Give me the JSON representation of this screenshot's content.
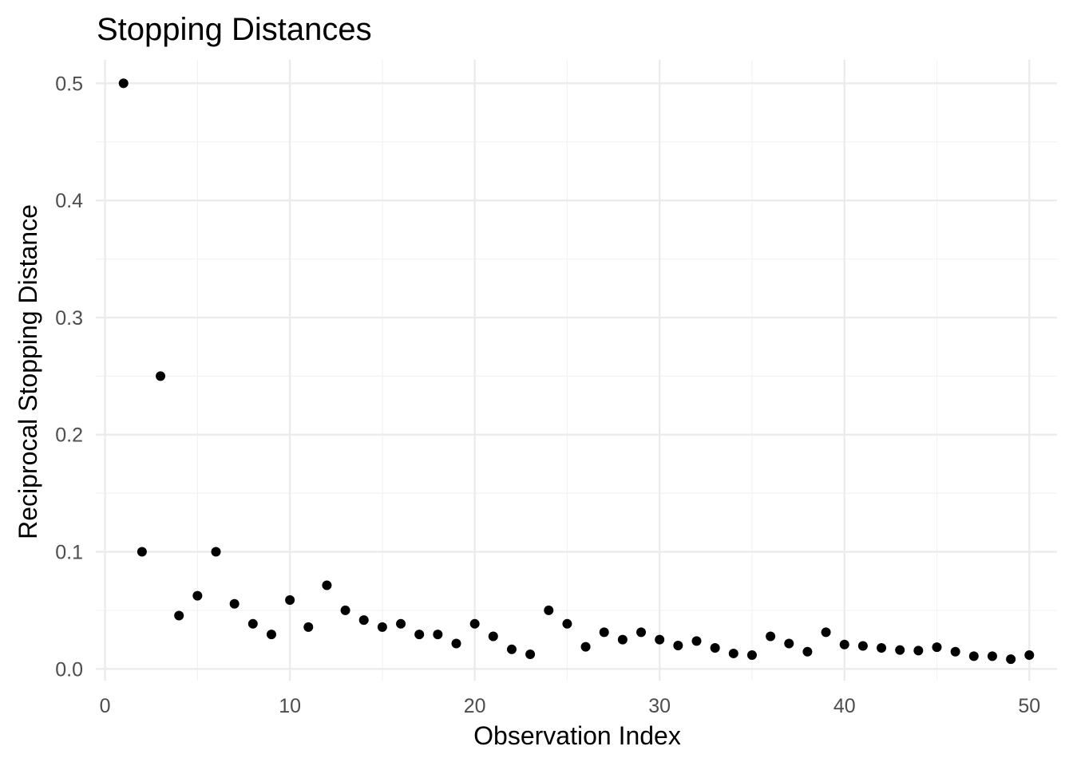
{
  "chart_data": {
    "type": "scatter",
    "title": "Stopping Distances",
    "xlabel": "Observation Index",
    "ylabel": "Reciprocal Stopping Distance",
    "xlim": [
      -0.5,
      51.5
    ],
    "ylim": [
      -0.01,
      0.52
    ],
    "x_ticks": [
      0,
      10,
      20,
      30,
      40,
      50
    ],
    "x_tick_labels": [
      "0",
      "10",
      "20",
      "30",
      "40",
      "50"
    ],
    "x_minor_ticks": [
      5,
      15,
      25,
      35,
      45
    ],
    "y_ticks": [
      0.0,
      0.1,
      0.2,
      0.3,
      0.4,
      0.5
    ],
    "y_tick_labels": [
      "0.0",
      "0.1",
      "0.2",
      "0.3",
      "0.4",
      "0.5"
    ],
    "y_minor_ticks": [
      0.05,
      0.15,
      0.25,
      0.35,
      0.45
    ],
    "grid": true,
    "point_color": "#000000",
    "series": [
      {
        "x": [
          1,
          2,
          3,
          4,
          5,
          6,
          7,
          8,
          9,
          10,
          11,
          12,
          13,
          14,
          15,
          16,
          17,
          18,
          19,
          20,
          21,
          22,
          23,
          24,
          25,
          26,
          27,
          28,
          29,
          30,
          31,
          32,
          33,
          34,
          35,
          36,
          37,
          38,
          39,
          40,
          41,
          42,
          43,
          44,
          45,
          46,
          47,
          48,
          49,
          50
        ],
        "y": [
          0.5,
          0.1,
          0.25,
          0.0455,
          0.0625,
          0.1,
          0.0556,
          0.0385,
          0.0294,
          0.0588,
          0.0357,
          0.0714,
          0.05,
          0.0417,
          0.0357,
          0.0385,
          0.0294,
          0.0294,
          0.0217,
          0.0385,
          0.0278,
          0.0167,
          0.0125,
          0.05,
          0.0385,
          0.0189,
          0.0313,
          0.025,
          0.0313,
          0.025,
          0.02,
          0.0238,
          0.0179,
          0.0132,
          0.0118,
          0.0278,
          0.0217,
          0.0147,
          0.0313,
          0.0208,
          0.0196,
          0.0179,
          0.0161,
          0.0156,
          0.0185,
          0.0147,
          0.0109,
          0.0109,
          0.0083,
          0.0118
        ]
      }
    ]
  }
}
